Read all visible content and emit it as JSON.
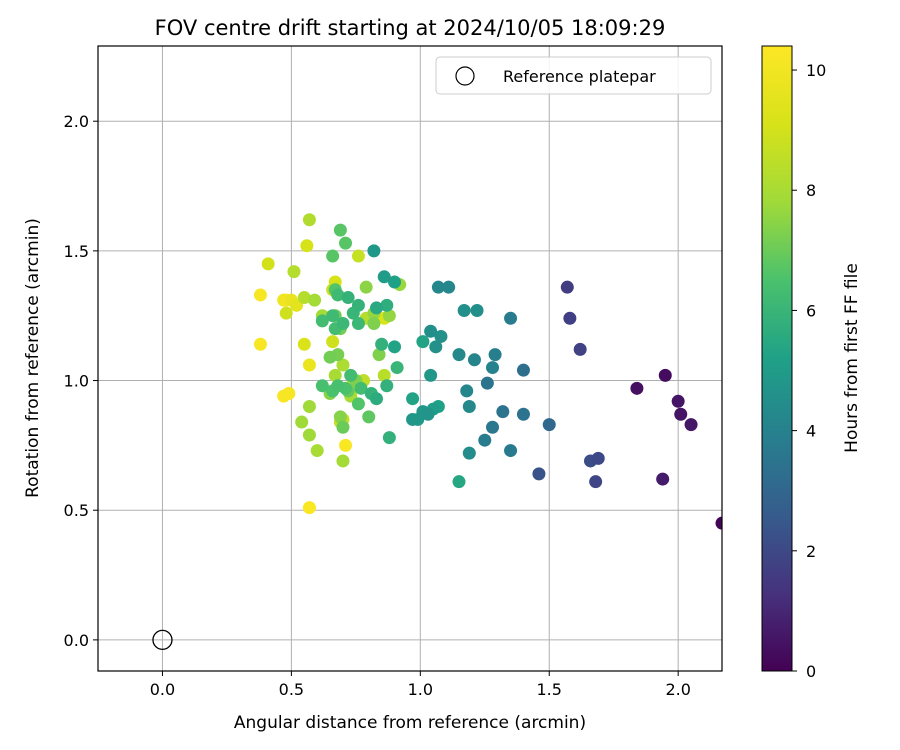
{
  "chart_data": {
    "type": "scatter",
    "title": "FOV centre drift starting at 2024/10/05 18:09:29",
    "xlabel": "Angular distance from reference (arcmin)",
    "ylabel": "Rotation from reference (arcmin)",
    "xlim": [
      -0.25,
      2.17
    ],
    "ylim": [
      -0.12,
      2.29
    ],
    "xticks": [
      0.0,
      0.5,
      1.0,
      1.5,
      2.0
    ],
    "yticks": [
      0.0,
      0.5,
      1.0,
      1.5,
      2.0
    ],
    "xtick_labels": [
      "0.0",
      "0.5",
      "1.0",
      "1.5",
      "2.0"
    ],
    "ytick_labels": [
      "0.0",
      "0.5",
      "1.0",
      "1.5",
      "2.0"
    ],
    "grid": true,
    "legend": {
      "placement": "top-right",
      "label": "Reference platepar",
      "marker": "open-circle"
    },
    "reference_point": {
      "x": 0.0,
      "y": 0.0
    },
    "colorbar": {
      "label": "Hours from first FF file",
      "range": [
        0,
        10.4
      ],
      "ticks": [
        0,
        2,
        4,
        6,
        8,
        10
      ],
      "tick_labels": [
        "0",
        "2",
        "4",
        "6",
        "8",
        "10"
      ],
      "colormap": "viridis"
    },
    "points": [
      [
        2.17,
        0.45,
        0.1
      ],
      [
        1.95,
        1.02,
        0.3
      ],
      [
        1.84,
        0.97,
        0.4
      ],
      [
        2.0,
        0.92,
        0.5
      ],
      [
        2.01,
        0.87,
        0.5
      ],
      [
        2.05,
        0.83,
        0.6
      ],
      [
        1.94,
        0.62,
        0.7
      ],
      [
        1.57,
        1.36,
        1.6
      ],
      [
        1.58,
        1.24,
        1.7
      ],
      [
        1.62,
        1.12,
        1.8
      ],
      [
        1.68,
        0.61,
        1.9
      ],
      [
        1.69,
        0.7,
        2.0
      ],
      [
        1.66,
        0.69,
        2.1
      ],
      [
        1.46,
        0.64,
        2.3
      ],
      [
        1.5,
        0.83,
        3.1
      ],
      [
        1.4,
        1.04,
        3.3
      ],
      [
        1.4,
        0.87,
        3.4
      ],
      [
        1.32,
        0.88,
        3.5
      ],
      [
        1.26,
        0.99,
        3.5
      ],
      [
        1.28,
        0.82,
        3.6
      ],
      [
        1.35,
        0.73,
        3.7
      ],
      [
        1.25,
        0.77,
        3.8
      ],
      [
        1.35,
        1.24,
        3.8
      ],
      [
        1.29,
        1.1,
        3.9
      ],
      [
        1.28,
        1.05,
        4.0
      ],
      [
        1.21,
        1.08,
        4.1
      ],
      [
        1.18,
        0.96,
        4.2
      ],
      [
        1.19,
        0.9,
        4.3
      ],
      [
        1.19,
        0.72,
        4.4
      ],
      [
        1.15,
        1.1,
        4.3
      ],
      [
        1.07,
        1.36,
        4.2
      ],
      [
        1.11,
        1.36,
        4.2
      ],
      [
        1.17,
        1.27,
        4.5
      ],
      [
        1.22,
        1.27,
        4.5
      ],
      [
        1.04,
        1.19,
        4.5
      ],
      [
        1.06,
        1.13,
        4.6
      ],
      [
        1.08,
        1.17,
        4.6
      ],
      [
        1.03,
        0.87,
        4.7
      ],
      [
        1.04,
        1.02,
        4.8
      ],
      [
        1.01,
        0.88,
        4.8
      ],
      [
        0.99,
        0.85,
        4.9
      ],
      [
        1.05,
        0.89,
        5.0
      ],
      [
        1.07,
        0.9,
        5.2
      ],
      [
        1.01,
        1.15,
        5.3
      ],
      [
        0.97,
        0.93,
        5.3
      ],
      [
        0.97,
        0.85,
        4.8
      ],
      [
        1.15,
        0.61,
        5.4
      ],
      [
        0.82,
        1.5,
        4.8
      ],
      [
        0.86,
        1.4,
        5.0
      ],
      [
        0.9,
        1.38,
        5.2
      ],
      [
        0.9,
        1.13,
        5.3
      ],
      [
        0.83,
        1.28,
        5.5
      ],
      [
        0.87,
        1.29,
        5.7
      ],
      [
        0.85,
        1.14,
        5.8
      ],
      [
        0.87,
        0.98,
        5.8
      ],
      [
        0.88,
        0.78,
        5.8
      ],
      [
        0.83,
        0.93,
        5.6
      ],
      [
        0.81,
        0.95,
        5.9
      ],
      [
        0.91,
        1.05,
        6.0
      ],
      [
        0.72,
        1.32,
        5.9
      ],
      [
        0.76,
        1.29,
        5.9
      ],
      [
        0.74,
        1.26,
        6.0
      ],
      [
        0.76,
        1.22,
        6.1
      ],
      [
        0.7,
        1.22,
        6.1
      ],
      [
        0.68,
        1.33,
        6.2
      ],
      [
        0.66,
        1.25,
        6.2
      ],
      [
        0.62,
        1.23,
        6.3
      ],
      [
        0.67,
        1.2,
        6.3
      ],
      [
        0.73,
        1.02,
        6.3
      ],
      [
        0.77,
        0.97,
        6.3
      ],
      [
        0.62,
        0.98,
        6.4
      ],
      [
        0.68,
        0.98,
        6.4
      ],
      [
        0.71,
        0.97,
        6.5
      ],
      [
        0.66,
        0.96,
        6.5
      ],
      [
        0.76,
        0.91,
        6.6
      ],
      [
        0.67,
        1.35,
        6.6
      ],
      [
        0.69,
        1.58,
        6.7
      ],
      [
        0.71,
        1.53,
        6.7
      ],
      [
        0.66,
        1.48,
        6.7
      ],
      [
        0.8,
        0.86,
        6.8
      ],
      [
        0.72,
        0.96,
        6.9
      ],
      [
        0.7,
        0.82,
        7.0
      ],
      [
        0.67,
        1.25,
        7.0
      ],
      [
        0.69,
        1.2,
        7.1
      ],
      [
        0.65,
        1.09,
        7.1
      ],
      [
        0.68,
        1.1,
        7.2
      ],
      [
        0.82,
        1.22,
        7.3
      ],
      [
        0.84,
        1.1,
        7.3
      ],
      [
        0.75,
        1.0,
        7.3
      ],
      [
        0.65,
        0.95,
        7.4
      ],
      [
        0.69,
        0.86,
        7.4
      ],
      [
        0.79,
        1.36,
        7.5
      ],
      [
        0.82,
        1.26,
        7.6
      ],
      [
        0.88,
        1.25,
        7.6
      ],
      [
        0.92,
        1.37,
        7.7
      ],
      [
        0.54,
        0.84,
        7.8
      ],
      [
        0.57,
        0.9,
        7.8
      ],
      [
        0.57,
        0.79,
        7.8
      ],
      [
        0.59,
        1.31,
        7.9
      ],
      [
        0.62,
        1.25,
        7.9
      ],
      [
        0.7,
        0.69,
        7.9
      ],
      [
        0.6,
        0.73,
        8.0
      ],
      [
        0.73,
        0.94,
        8.0
      ],
      [
        0.67,
        1.02,
        8.0
      ],
      [
        0.7,
        1.06,
        8.1
      ],
      [
        0.74,
        0.97,
        8.1
      ],
      [
        0.57,
        1.62,
        8.2
      ],
      [
        0.55,
        1.32,
        8.3
      ],
      [
        0.51,
        1.42,
        8.3
      ],
      [
        0.79,
        1.24,
        8.3
      ],
      [
        0.86,
        1.02,
        8.4
      ],
      [
        0.78,
        1.0,
        8.5
      ],
      [
        0.7,
        0.85,
        8.6
      ],
      [
        0.69,
        0.84,
        8.6
      ],
      [
        0.74,
        1.0,
        8.7
      ],
      [
        0.76,
        1.48,
        8.7
      ],
      [
        0.66,
        1.35,
        8.8
      ],
      [
        0.66,
        1.15,
        8.9
      ],
      [
        0.48,
        1.26,
        8.9
      ],
      [
        0.41,
        1.45,
        9.0
      ],
      [
        0.56,
        1.52,
        9.1
      ],
      [
        0.67,
        1.38,
        9.1
      ],
      [
        0.55,
        1.14,
        9.2
      ],
      [
        0.86,
        1.24,
        9.2
      ],
      [
        0.52,
        1.29,
        9.5
      ],
      [
        0.5,
        1.31,
        9.7
      ],
      [
        0.57,
        1.06,
        9.8
      ],
      [
        0.47,
        1.31,
        10.0
      ],
      [
        0.48,
        1.31,
        10.1
      ],
      [
        0.38,
        1.33,
        10.2
      ],
      [
        0.38,
        1.14,
        10.2
      ],
      [
        0.47,
        0.94,
        10.2
      ],
      [
        0.49,
        0.95,
        10.2
      ],
      [
        0.57,
        0.51,
        10.3
      ],
      [
        0.71,
        0.75,
        10.3
      ]
    ]
  }
}
